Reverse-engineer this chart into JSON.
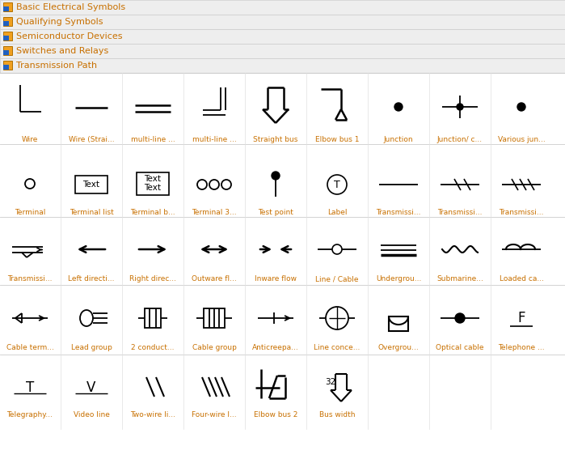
{
  "white": "#ffffff",
  "header_bg": "#eeeeee",
  "header_border": "#cccccc",
  "header_text_color": "#c87000",
  "symbol_color": "#000000",
  "label_color": "#c87000",
  "headers": [
    "Basic Electrical Symbols",
    "Qualifying Symbols",
    "Semiconductor Devices",
    "Switches and Relays",
    "Transmission Path"
  ],
  "row1_labels": [
    "Wire",
    "Wire (Strai...",
    "multi-line ...",
    "multi-line ...",
    "Straight bus",
    "Elbow bus 1",
    "Junction",
    "Junction/ c...",
    "Various jun..."
  ],
  "row2_labels": [
    "Terminal",
    "Terminal list",
    "Terminal b...",
    "Terminal 3...",
    "Test point",
    "Label",
    "Transmissi...",
    "Transmissi...",
    "Transmissi..."
  ],
  "row3_labels": [
    "Transmissi...",
    "Left directi...",
    "Right direc...",
    "Outware fl...",
    "Inware flow",
    "Line / Cable",
    "Undergrou...",
    "Submarine...",
    "Loaded ca..."
  ],
  "row4_labels": [
    "Cable term...",
    "Lead group",
    "2 conduct...",
    "Cable group",
    "Anticreepa...",
    "Line conce...",
    "Overgrou...",
    "Optical cable",
    "Telephone ..."
  ],
  "row5_labels": [
    "Telegraphy...",
    "Video line",
    "Two-wire li...",
    "Four-wire l...",
    "Elbow bus 2",
    "Bus width",
    "",
    "",
    ""
  ]
}
